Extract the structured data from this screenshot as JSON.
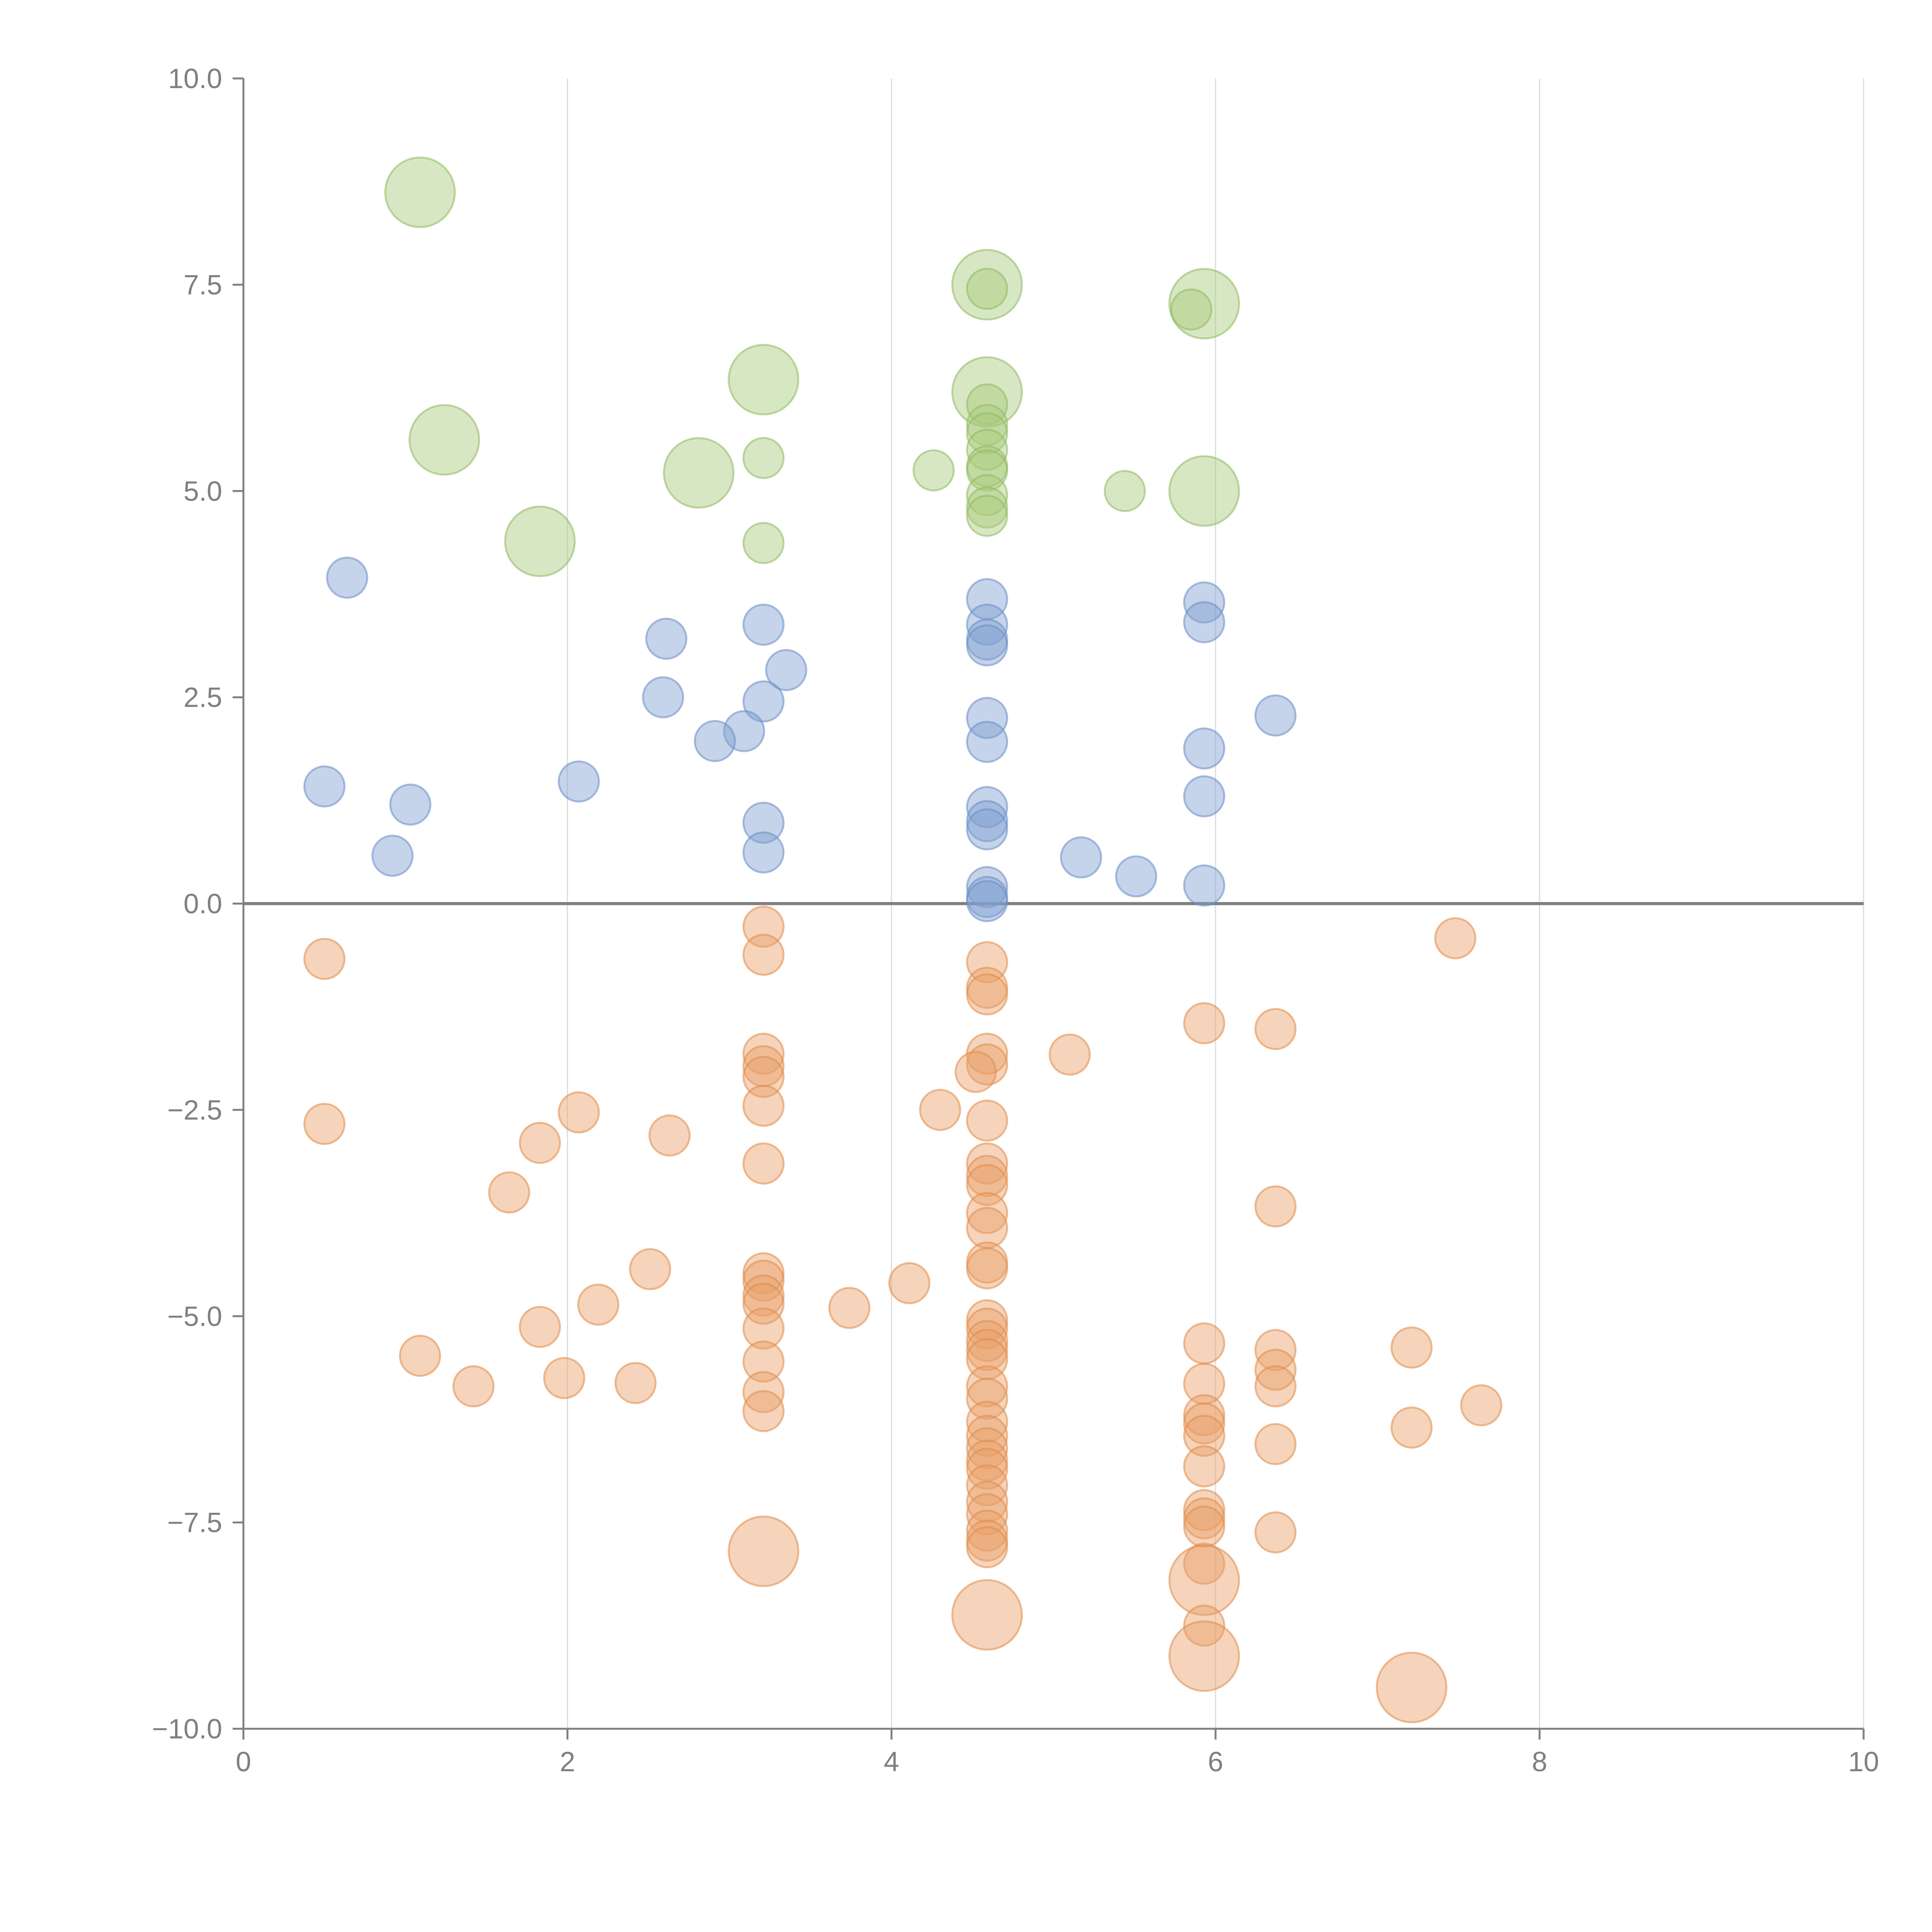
{
  "chart_data": {
    "type": "scatter",
    "title": "",
    "xlabel": "",
    "ylabel": "",
    "xlim": [
      0,
      10
    ],
    "ylim": [
      -10,
      10
    ],
    "grid": "vertical",
    "x_ticks": [
      0,
      2,
      4,
      6,
      8,
      10
    ],
    "x_tick_labels": [
      "0",
      "2",
      "4",
      "6",
      "8",
      "10"
    ],
    "y_ticks": [
      10,
      7.5,
      5,
      2.5,
      0,
      -2.5,
      -5,
      -7.5,
      -10
    ],
    "y_tick_labels": [
      "10.0",
      "7.5",
      "5.0",
      "2.5",
      "0.0",
      "−2.5",
      "−5.0",
      "−7.5",
      "−10.0"
    ],
    "zero_line": 0,
    "colors": {
      "green": "#a8c97a",
      "blue": "#7f9fd0",
      "orange": "#e8a068",
      "green_stroke": "#8fb860",
      "blue_stroke": "#6a8cc6",
      "orange_stroke": "#e08a48"
    },
    "series": [
      {
        "name": "green",
        "color": "green",
        "points": [
          {
            "x": 1.09,
            "y": 8.62,
            "s": 3
          },
          {
            "x": 4.59,
            "y": 7.5,
            "s": 3
          },
          {
            "x": 4.59,
            "y": 7.45,
            "s": 1
          },
          {
            "x": 5.93,
            "y": 7.27,
            "s": 3
          },
          {
            "x": 5.85,
            "y": 7.2,
            "s": 1
          },
          {
            "x": 3.21,
            "y": 6.35,
            "s": 3
          },
          {
            "x": 4.59,
            "y": 6.2,
            "s": 3
          },
          {
            "x": 4.59,
            "y": 6.05,
            "s": 1
          },
          {
            "x": 4.59,
            "y": 5.8,
            "s": 1
          },
          {
            "x": 4.59,
            "y": 5.7,
            "s": 1
          },
          {
            "x": 1.24,
            "y": 5.62,
            "s": 3
          },
          {
            "x": 4.59,
            "y": 5.5,
            "s": 1
          },
          {
            "x": 3.21,
            "y": 5.4,
            "s": 1
          },
          {
            "x": 4.59,
            "y": 5.3,
            "s": 1
          },
          {
            "x": 4.59,
            "y": 5.25,
            "s": 1
          },
          {
            "x": 4.26,
            "y": 5.25,
            "s": 1
          },
          {
            "x": 2.81,
            "y": 5.22,
            "s": 3
          },
          {
            "x": 5.44,
            "y": 5.0,
            "s": 1
          },
          {
            "x": 5.93,
            "y": 5.0,
            "s": 3
          },
          {
            "x": 4.59,
            "y": 4.95,
            "s": 1
          },
          {
            "x": 4.59,
            "y": 4.8,
            "s": 1
          },
          {
            "x": 4.59,
            "y": 4.7,
            "s": 1
          },
          {
            "x": 1.83,
            "y": 4.39,
            "s": 3
          },
          {
            "x": 3.21,
            "y": 4.37,
            "s": 1
          }
        ]
      },
      {
        "name": "blue",
        "color": "blue",
        "points": [
          {
            "x": 0.64,
            "y": 3.95,
            "s": 1
          },
          {
            "x": 4.59,
            "y": 3.69,
            "s": 1
          },
          {
            "x": 5.93,
            "y": 3.65,
            "s": 1
          },
          {
            "x": 5.93,
            "y": 3.41,
            "s": 1
          },
          {
            "x": 3.21,
            "y": 3.38,
            "s": 1
          },
          {
            "x": 4.59,
            "y": 3.38,
            "s": 1
          },
          {
            "x": 4.59,
            "y": 3.2,
            "s": 1
          },
          {
            "x": 2.61,
            "y": 3.21,
            "s": 1
          },
          {
            "x": 4.59,
            "y": 3.13,
            "s": 1
          },
          {
            "x": 3.35,
            "y": 2.83,
            "s": 1
          },
          {
            "x": 2.59,
            "y": 2.5,
            "s": 1
          },
          {
            "x": 3.21,
            "y": 2.45,
            "s": 1
          },
          {
            "x": 6.37,
            "y": 2.28,
            "s": 1
          },
          {
            "x": 4.59,
            "y": 2.25,
            "s": 1
          },
          {
            "x": 3.09,
            "y": 2.09,
            "s": 1
          },
          {
            "x": 2.91,
            "y": 1.97,
            "s": 1
          },
          {
            "x": 4.59,
            "y": 1.96,
            "s": 1
          },
          {
            "x": 5.93,
            "y": 1.88,
            "s": 1
          },
          {
            "x": 2.07,
            "y": 1.48,
            "s": 1
          },
          {
            "x": 0.5,
            "y": 1.42,
            "s": 1
          },
          {
            "x": 5.93,
            "y": 1.3,
            "s": 1
          },
          {
            "x": 1.03,
            "y": 1.2,
            "s": 1
          },
          {
            "x": 4.59,
            "y": 1.17,
            "s": 1
          },
          {
            "x": 4.59,
            "y": 1.0,
            "s": 1
          },
          {
            "x": 3.21,
            "y": 0.98,
            "s": 1
          },
          {
            "x": 4.59,
            "y": 0.9,
            "s": 1
          },
          {
            "x": 3.21,
            "y": 0.62,
            "s": 1
          },
          {
            "x": 0.92,
            "y": 0.58,
            "s": 1
          },
          {
            "x": 5.17,
            "y": 0.56,
            "s": 1
          },
          {
            "x": 5.51,
            "y": 0.33,
            "s": 1
          },
          {
            "x": 5.93,
            "y": 0.22,
            "s": 1
          },
          {
            "x": 4.59,
            "y": 0.2,
            "s": 1
          },
          {
            "x": 4.59,
            "y": 0.08,
            "s": 1
          },
          {
            "x": 4.59,
            "y": 0.03,
            "s": 1
          }
        ]
      },
      {
        "name": "orange",
        "color": "orange",
        "points": [
          {
            "x": 3.21,
            "y": -0.28,
            "s": 1
          },
          {
            "x": 7.48,
            "y": -0.42,
            "s": 1
          },
          {
            "x": 3.21,
            "y": -0.62,
            "s": 1
          },
          {
            "x": 0.5,
            "y": -0.67,
            "s": 1
          },
          {
            "x": 4.59,
            "y": -0.71,
            "s": 1
          },
          {
            "x": 4.59,
            "y": -1.02,
            "s": 1
          },
          {
            "x": 4.59,
            "y": -1.1,
            "s": 1
          },
          {
            "x": 5.93,
            "y": -1.45,
            "s": 1
          },
          {
            "x": 6.37,
            "y": -1.52,
            "s": 1
          },
          {
            "x": 5.1,
            "y": -1.83,
            "s": 1
          },
          {
            "x": 3.21,
            "y": -1.82,
            "s": 1
          },
          {
            "x": 4.59,
            "y": -1.82,
            "s": 1
          },
          {
            "x": 3.21,
            "y": -1.97,
            "s": 1
          },
          {
            "x": 4.59,
            "y": -1.95,
            "s": 1
          },
          {
            "x": 4.52,
            "y": -2.04,
            "s": 1
          },
          {
            "x": 3.21,
            "y": -2.1,
            "s": 1
          },
          {
            "x": 3.21,
            "y": -2.45,
            "s": 1
          },
          {
            "x": 4.3,
            "y": -2.5,
            "s": 1
          },
          {
            "x": 2.07,
            "y": -2.53,
            "s": 1
          },
          {
            "x": 4.59,
            "y": -2.63,
            "s": 1
          },
          {
            "x": 0.5,
            "y": -2.67,
            "s": 1
          },
          {
            "x": 2.63,
            "y": -2.81,
            "s": 1
          },
          {
            "x": 1.83,
            "y": -2.9,
            "s": 1
          },
          {
            "x": 3.21,
            "y": -3.15,
            "s": 1
          },
          {
            "x": 4.59,
            "y": -3.15,
            "s": 1
          },
          {
            "x": 4.59,
            "y": -3.3,
            "s": 1
          },
          {
            "x": 4.59,
            "y": -3.41,
            "s": 1
          },
          {
            "x": 1.64,
            "y": -3.5,
            "s": 1
          },
          {
            "x": 6.37,
            "y": -3.67,
            "s": 1
          },
          {
            "x": 4.59,
            "y": -3.75,
            "s": 1
          },
          {
            "x": 4.59,
            "y": -3.93,
            "s": 1
          },
          {
            "x": 4.59,
            "y": -4.35,
            "s": 1
          },
          {
            "x": 4.59,
            "y": -4.42,
            "s": 1
          },
          {
            "x": 2.51,
            "y": -4.43,
            "s": 1
          },
          {
            "x": 3.21,
            "y": -4.48,
            "s": 1
          },
          {
            "x": 3.21,
            "y": -4.57,
            "s": 1
          },
          {
            "x": 4.11,
            "y": -4.6,
            "s": 1
          },
          {
            "x": 3.21,
            "y": -4.75,
            "s": 1
          },
          {
            "x": 3.21,
            "y": -4.85,
            "s": 1
          },
          {
            "x": 2.19,
            "y": -4.86,
            "s": 1
          },
          {
            "x": 3.74,
            "y": -4.9,
            "s": 1
          },
          {
            "x": 4.59,
            "y": -5.05,
            "s": 1
          },
          {
            "x": 1.83,
            "y": -5.13,
            "s": 1
          },
          {
            "x": 3.21,
            "y": -5.15,
            "s": 1
          },
          {
            "x": 4.59,
            "y": -5.15,
            "s": 1
          },
          {
            "x": 4.59,
            "y": -5.3,
            "s": 1
          },
          {
            "x": 5.93,
            "y": -5.33,
            "s": 1
          },
          {
            "x": 7.21,
            "y": -5.38,
            "s": 1
          },
          {
            "x": 4.59,
            "y": -5.41,
            "s": 1
          },
          {
            "x": 6.37,
            "y": -5.41,
            "s": 1
          },
          {
            "x": 1.09,
            "y": -5.48,
            "s": 1
          },
          {
            "x": 4.59,
            "y": -5.52,
            "s": 1
          },
          {
            "x": 3.21,
            "y": -5.55,
            "s": 1
          },
          {
            "x": 6.37,
            "y": -5.65,
            "s": 1
          },
          {
            "x": 1.98,
            "y": -5.75,
            "s": 1
          },
          {
            "x": 2.42,
            "y": -5.81,
            "s": 1
          },
          {
            "x": 5.93,
            "y": -5.82,
            "s": 1
          },
          {
            "x": 1.42,
            "y": -5.85,
            "s": 1
          },
          {
            "x": 4.59,
            "y": -5.85,
            "s": 1
          },
          {
            "x": 6.37,
            "y": -5.85,
            "s": 1
          },
          {
            "x": 3.21,
            "y": -5.92,
            "s": 1
          },
          {
            "x": 4.59,
            "y": -6.0,
            "s": 1
          },
          {
            "x": 7.64,
            "y": -6.08,
            "s": 1
          },
          {
            "x": 3.21,
            "y": -6.15,
            "s": 1
          },
          {
            "x": 5.93,
            "y": -6.2,
            "s": 1
          },
          {
            "x": 4.59,
            "y": -6.28,
            "s": 1
          },
          {
            "x": 5.93,
            "y": -6.3,
            "s": 1
          },
          {
            "x": 7.21,
            "y": -6.35,
            "s": 1
          },
          {
            "x": 4.59,
            "y": -6.45,
            "s": 1
          },
          {
            "x": 5.93,
            "y": -6.45,
            "s": 1
          },
          {
            "x": 6.37,
            "y": -6.55,
            "s": 1
          },
          {
            "x": 4.59,
            "y": -6.6,
            "s": 1
          },
          {
            "x": 4.59,
            "y": -6.75,
            "s": 1
          },
          {
            "x": 4.59,
            "y": -6.85,
            "s": 1
          },
          {
            "x": 5.93,
            "y": -6.82,
            "s": 1
          },
          {
            "x": 4.59,
            "y": -7.05,
            "s": 1
          },
          {
            "x": 4.59,
            "y": -7.25,
            "s": 1
          },
          {
            "x": 5.93,
            "y": -7.35,
            "s": 1
          },
          {
            "x": 4.59,
            "y": -7.4,
            "s": 1
          },
          {
            "x": 5.93,
            "y": -7.45,
            "s": 1
          },
          {
            "x": 5.93,
            "y": -7.55,
            "s": 1
          },
          {
            "x": 4.59,
            "y": -7.6,
            "s": 1
          },
          {
            "x": 6.37,
            "y": -7.62,
            "s": 1
          },
          {
            "x": 4.59,
            "y": -7.72,
            "s": 1
          },
          {
            "x": 4.59,
            "y": -7.8,
            "s": 1
          },
          {
            "x": 3.21,
            "y": -7.85,
            "s": 3
          },
          {
            "x": 5.93,
            "y": -8.0,
            "s": 1
          },
          {
            "x": 5.93,
            "y": -8.2,
            "s": 3
          },
          {
            "x": 4.59,
            "y": -8.62,
            "s": 3
          },
          {
            "x": 5.93,
            "y": -8.75,
            "s": 1
          },
          {
            "x": 5.93,
            "y": -9.12,
            "s": 3
          },
          {
            "x": 7.21,
            "y": -9.5,
            "s": 3
          }
        ]
      }
    ]
  }
}
